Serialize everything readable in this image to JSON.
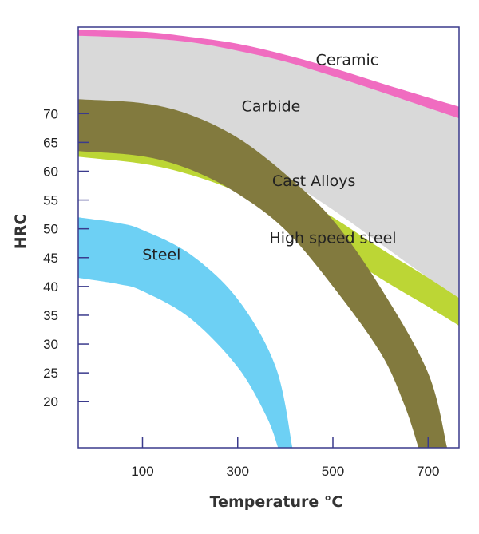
{
  "chart_data": {
    "type": "area",
    "title": "",
    "xlabel": "Temperature  °C",
    "ylabel": "HRC",
    "x_ticks": [
      100,
      300,
      500,
      700
    ],
    "y_ticks": [
      20,
      25,
      30,
      35,
      40,
      45,
      50,
      55,
      60,
      65,
      70
    ],
    "xlim": [
      -35,
      765
    ],
    "ylim": [
      12,
      85
    ],
    "grid": false,
    "legend": "none (bands labeled directly)",
    "series": [
      {
        "name": "Ceramic",
        "color": "#f06cc0",
        "upper": [
          [
            -35,
            84.5
          ],
          [
            100,
            84.2
          ],
          [
            200,
            83.3
          ],
          [
            300,
            82.1
          ],
          [
            400,
            80.2
          ],
          [
            500,
            77.9
          ],
          [
            600,
            75.3
          ],
          [
            700,
            72.8
          ],
          [
            765,
            71.2
          ]
        ],
        "lower": [
          [
            -35,
            82
          ],
          [
            100,
            81.6
          ],
          [
            200,
            80.9
          ],
          [
            300,
            79.8
          ],
          [
            400,
            77.9
          ],
          [
            500,
            75.3
          ],
          [
            600,
            72.7
          ],
          [
            700,
            70.2
          ],
          [
            765,
            68.3
          ]
        ]
      },
      {
        "name": "Carbide",
        "color": "#d9d9d9",
        "upper": [
          [
            -35,
            83.5
          ],
          [
            100,
            83.1
          ],
          [
            200,
            82.4
          ],
          [
            300,
            80.9
          ],
          [
            400,
            79.0
          ],
          [
            500,
            76.5
          ],
          [
            600,
            73.8
          ],
          [
            700,
            71.0
          ],
          [
            765,
            69.2
          ]
        ],
        "lower": [
          [
            -35,
            70.2
          ],
          [
            100,
            68.2
          ],
          [
            200,
            66.0
          ],
          [
            300,
            62.8
          ],
          [
            400,
            58.6
          ],
          [
            500,
            53.3
          ],
          [
            600,
            47.4
          ],
          [
            700,
            41.5
          ],
          [
            765,
            38
          ]
        ]
      },
      {
        "name": "Cast Alloys",
        "color": "#bcd635",
        "upper": [
          [
            -35,
            66
          ],
          [
            100,
            65.0
          ],
          [
            200,
            63.5
          ],
          [
            300,
            60.8
          ],
          [
            400,
            56.9
          ],
          [
            500,
            52.0
          ],
          [
            600,
            46.6
          ],
          [
            700,
            41.5
          ],
          [
            765,
            38.0
          ]
        ],
        "lower": [
          [
            -35,
            62.5
          ],
          [
            100,
            61.3
          ],
          [
            200,
            59.4
          ],
          [
            300,
            56.4
          ],
          [
            400,
            52.1
          ],
          [
            500,
            46.9
          ],
          [
            600,
            41.4
          ],
          [
            700,
            36.5
          ],
          [
            765,
            33.2
          ]
        ]
      },
      {
        "name": "High speed steel",
        "color": "#827a3e",
        "upper": [
          [
            -35,
            72.5
          ],
          [
            100,
            71.8
          ],
          [
            200,
            69.8
          ],
          [
            300,
            65.8
          ],
          [
            400,
            59.5
          ],
          [
            500,
            51.5
          ],
          [
            600,
            39.8
          ],
          [
            700,
            25.0
          ],
          [
            740,
            12
          ]
        ],
        "lower": [
          [
            -35,
            63.5
          ],
          [
            100,
            62.6
          ],
          [
            200,
            60.3
          ],
          [
            300,
            56.1
          ],
          [
            400,
            49.8
          ],
          [
            500,
            40.0
          ],
          [
            600,
            28.5
          ],
          [
            650,
            19.5
          ],
          [
            680,
            12
          ]
        ]
      },
      {
        "name": "Steel",
        "color": "#6dd0f4",
        "upper": [
          [
            -35,
            52
          ],
          [
            50,
            51.0
          ],
          [
            100,
            49.8
          ],
          [
            200,
            45.6
          ],
          [
            300,
            37.8
          ],
          [
            380,
            26.0
          ],
          [
            415,
            12
          ]
        ],
        "lower": [
          [
            -35,
            41.5
          ],
          [
            50,
            40.4
          ],
          [
            100,
            39.2
          ],
          [
            200,
            34.5
          ],
          [
            300,
            26.0
          ],
          [
            360,
            17.5
          ],
          [
            385,
            12
          ]
        ]
      }
    ]
  },
  "labels": {
    "Ceramic": {
      "text": "Ceramic",
      "x": 530,
      "y": 78.4
    },
    "Carbide": {
      "text": "Carbide",
      "x": 370,
      "y": 70.4
    },
    "Cast Alloys": {
      "text": "Cast Alloys",
      "x": 460,
      "y": 57.4
    },
    "High speed steel": {
      "text": "High speed steel",
      "x": 500,
      "y": 47.5
    },
    "Steel": {
      "text": "Steel",
      "x": 140,
      "y": 44.6
    }
  }
}
